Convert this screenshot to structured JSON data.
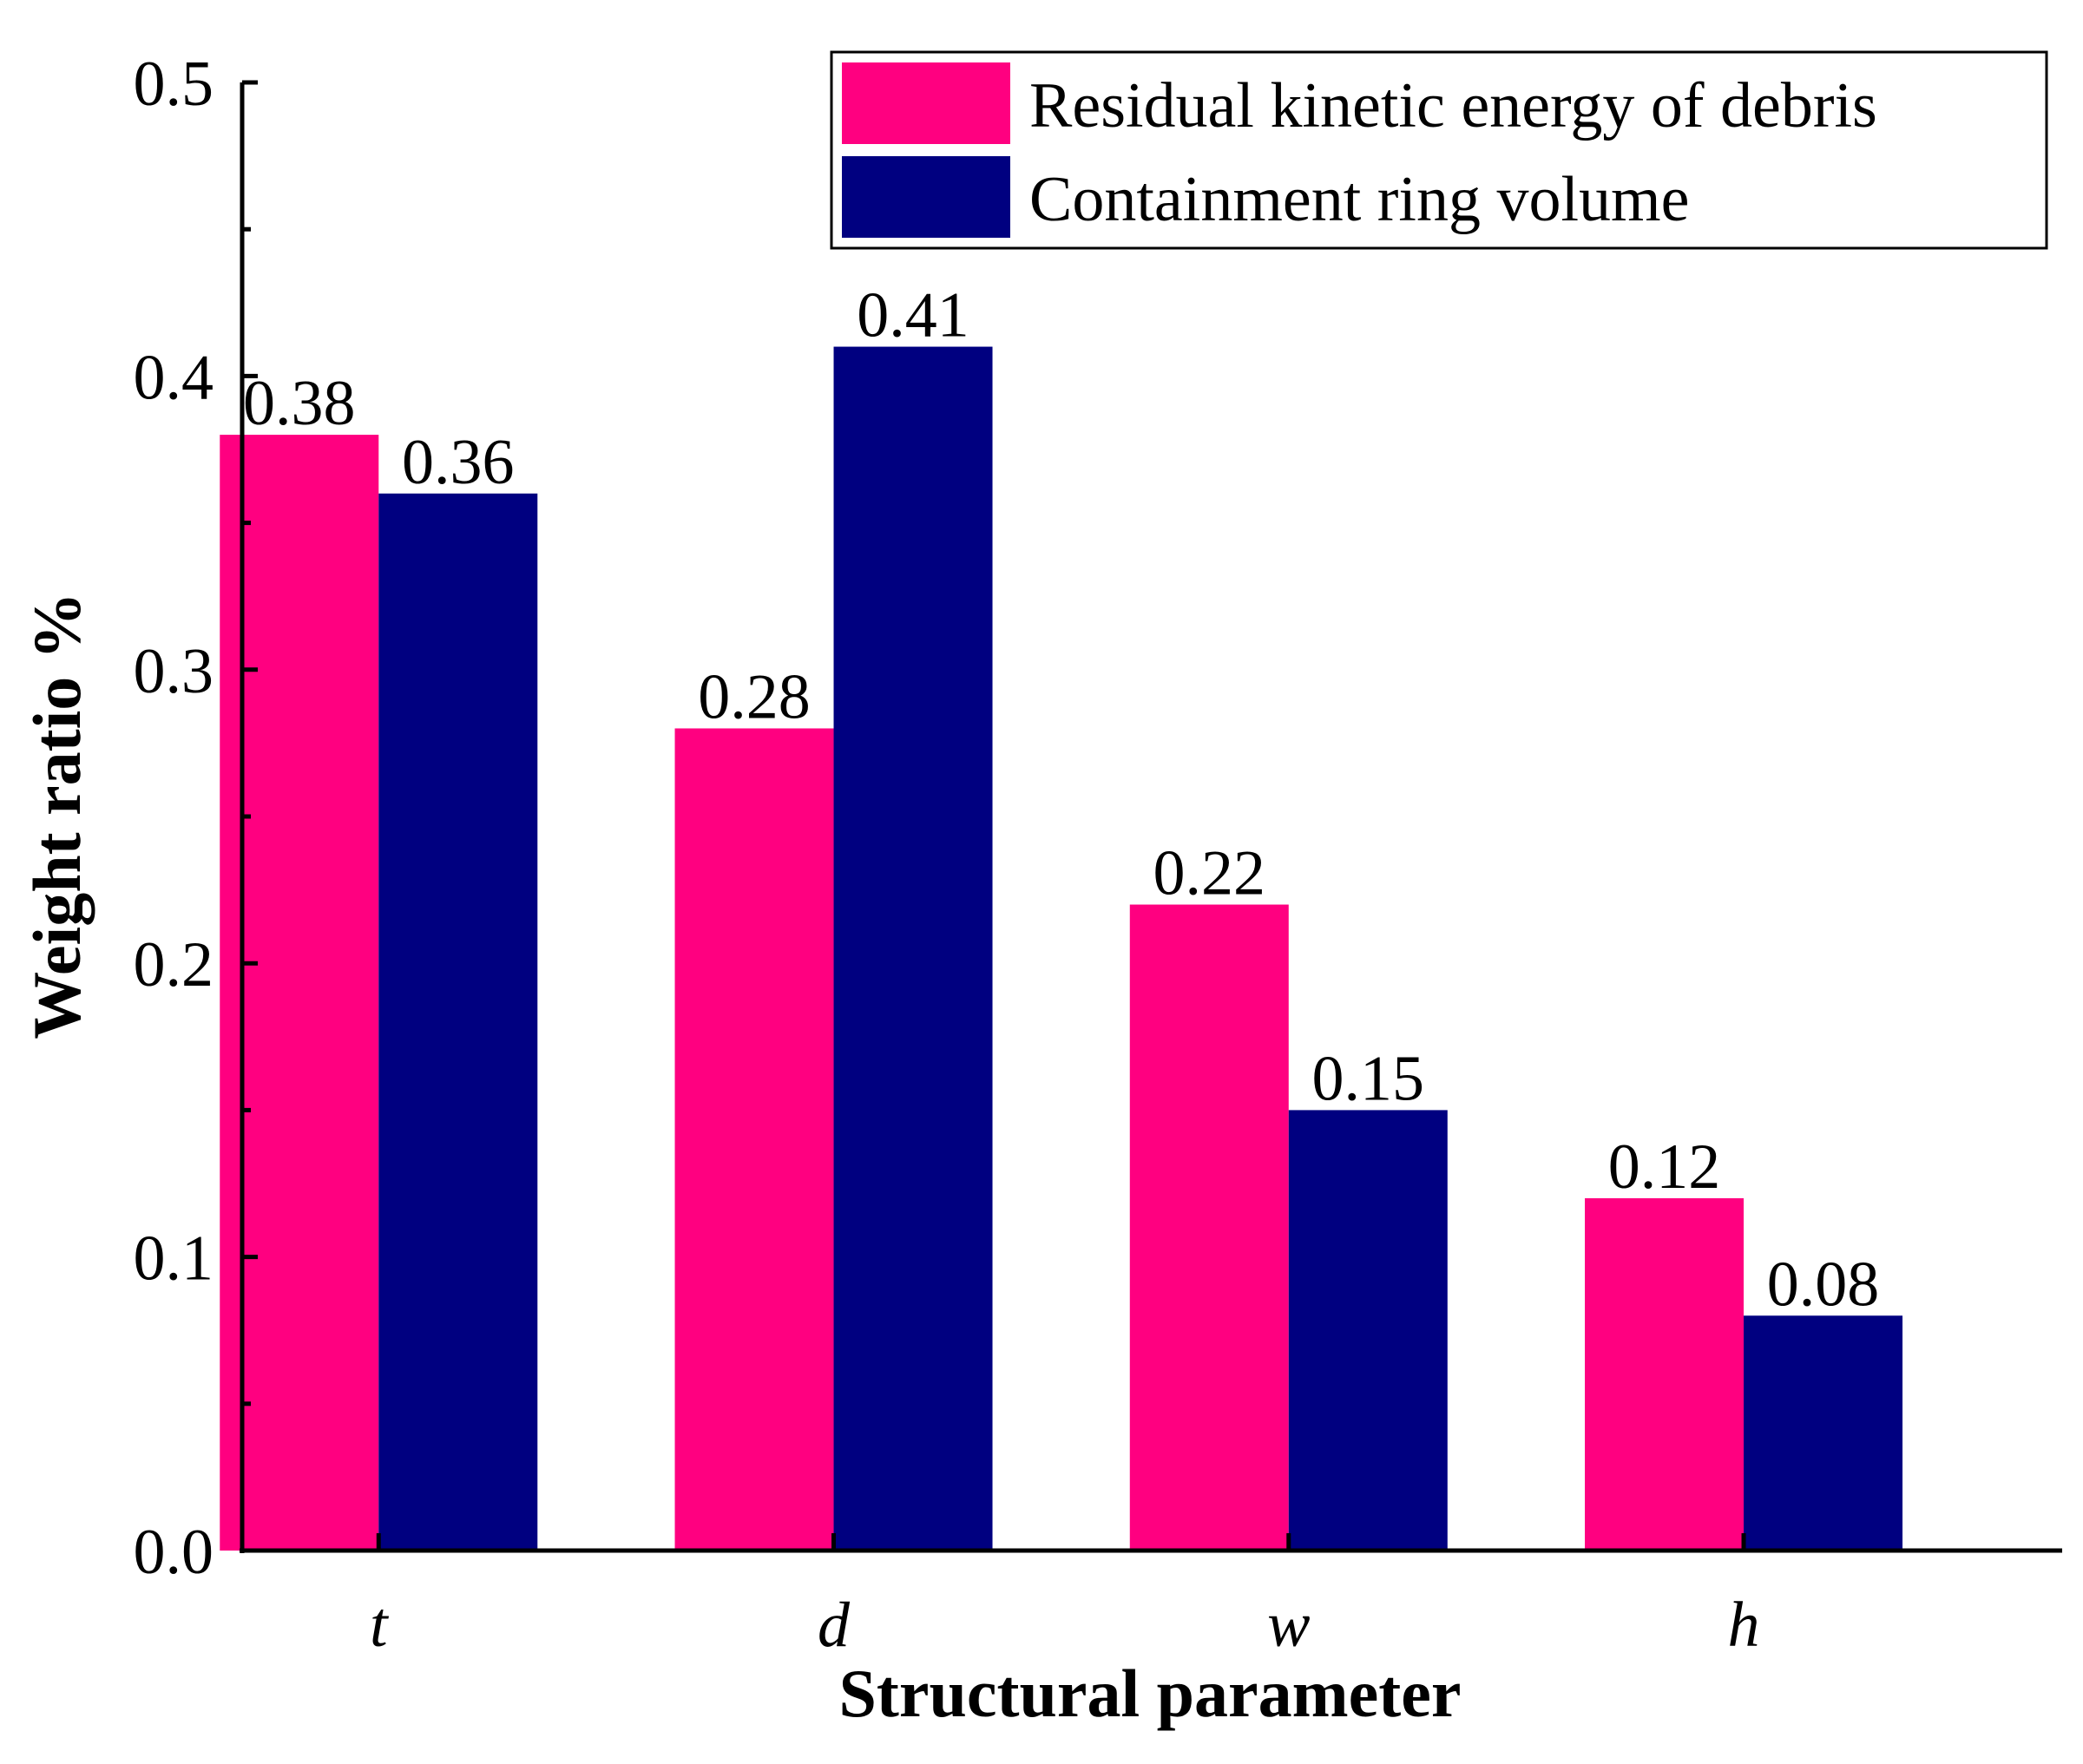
{
  "chart_data": {
    "type": "bar",
    "title": "",
    "xlabel": "Structural parameter",
    "ylabel": "Weight ratio %",
    "categories": [
      "t",
      "d",
      "w",
      "h"
    ],
    "series": [
      {
        "name": "Residual kinetic energy of debris",
        "color": "#ff0080",
        "values": [
          0.38,
          0.28,
          0.22,
          0.12
        ],
        "labels": [
          "0.38",
          "0.28",
          "0.22",
          "0.12"
        ]
      },
      {
        "name": "Containment ring volume",
        "color": "#000080",
        "values": [
          0.36,
          0.41,
          0.15,
          0.08
        ],
        "labels": [
          "0.36",
          "0.41",
          "0.15",
          "0.08"
        ]
      }
    ],
    "ylim": [
      0,
      0.5
    ],
    "yticks": [
      "0.0",
      "0.1",
      "0.2",
      "0.3",
      "0.4",
      "0.5"
    ],
    "grid": false,
    "legend_position": "top-right"
  }
}
